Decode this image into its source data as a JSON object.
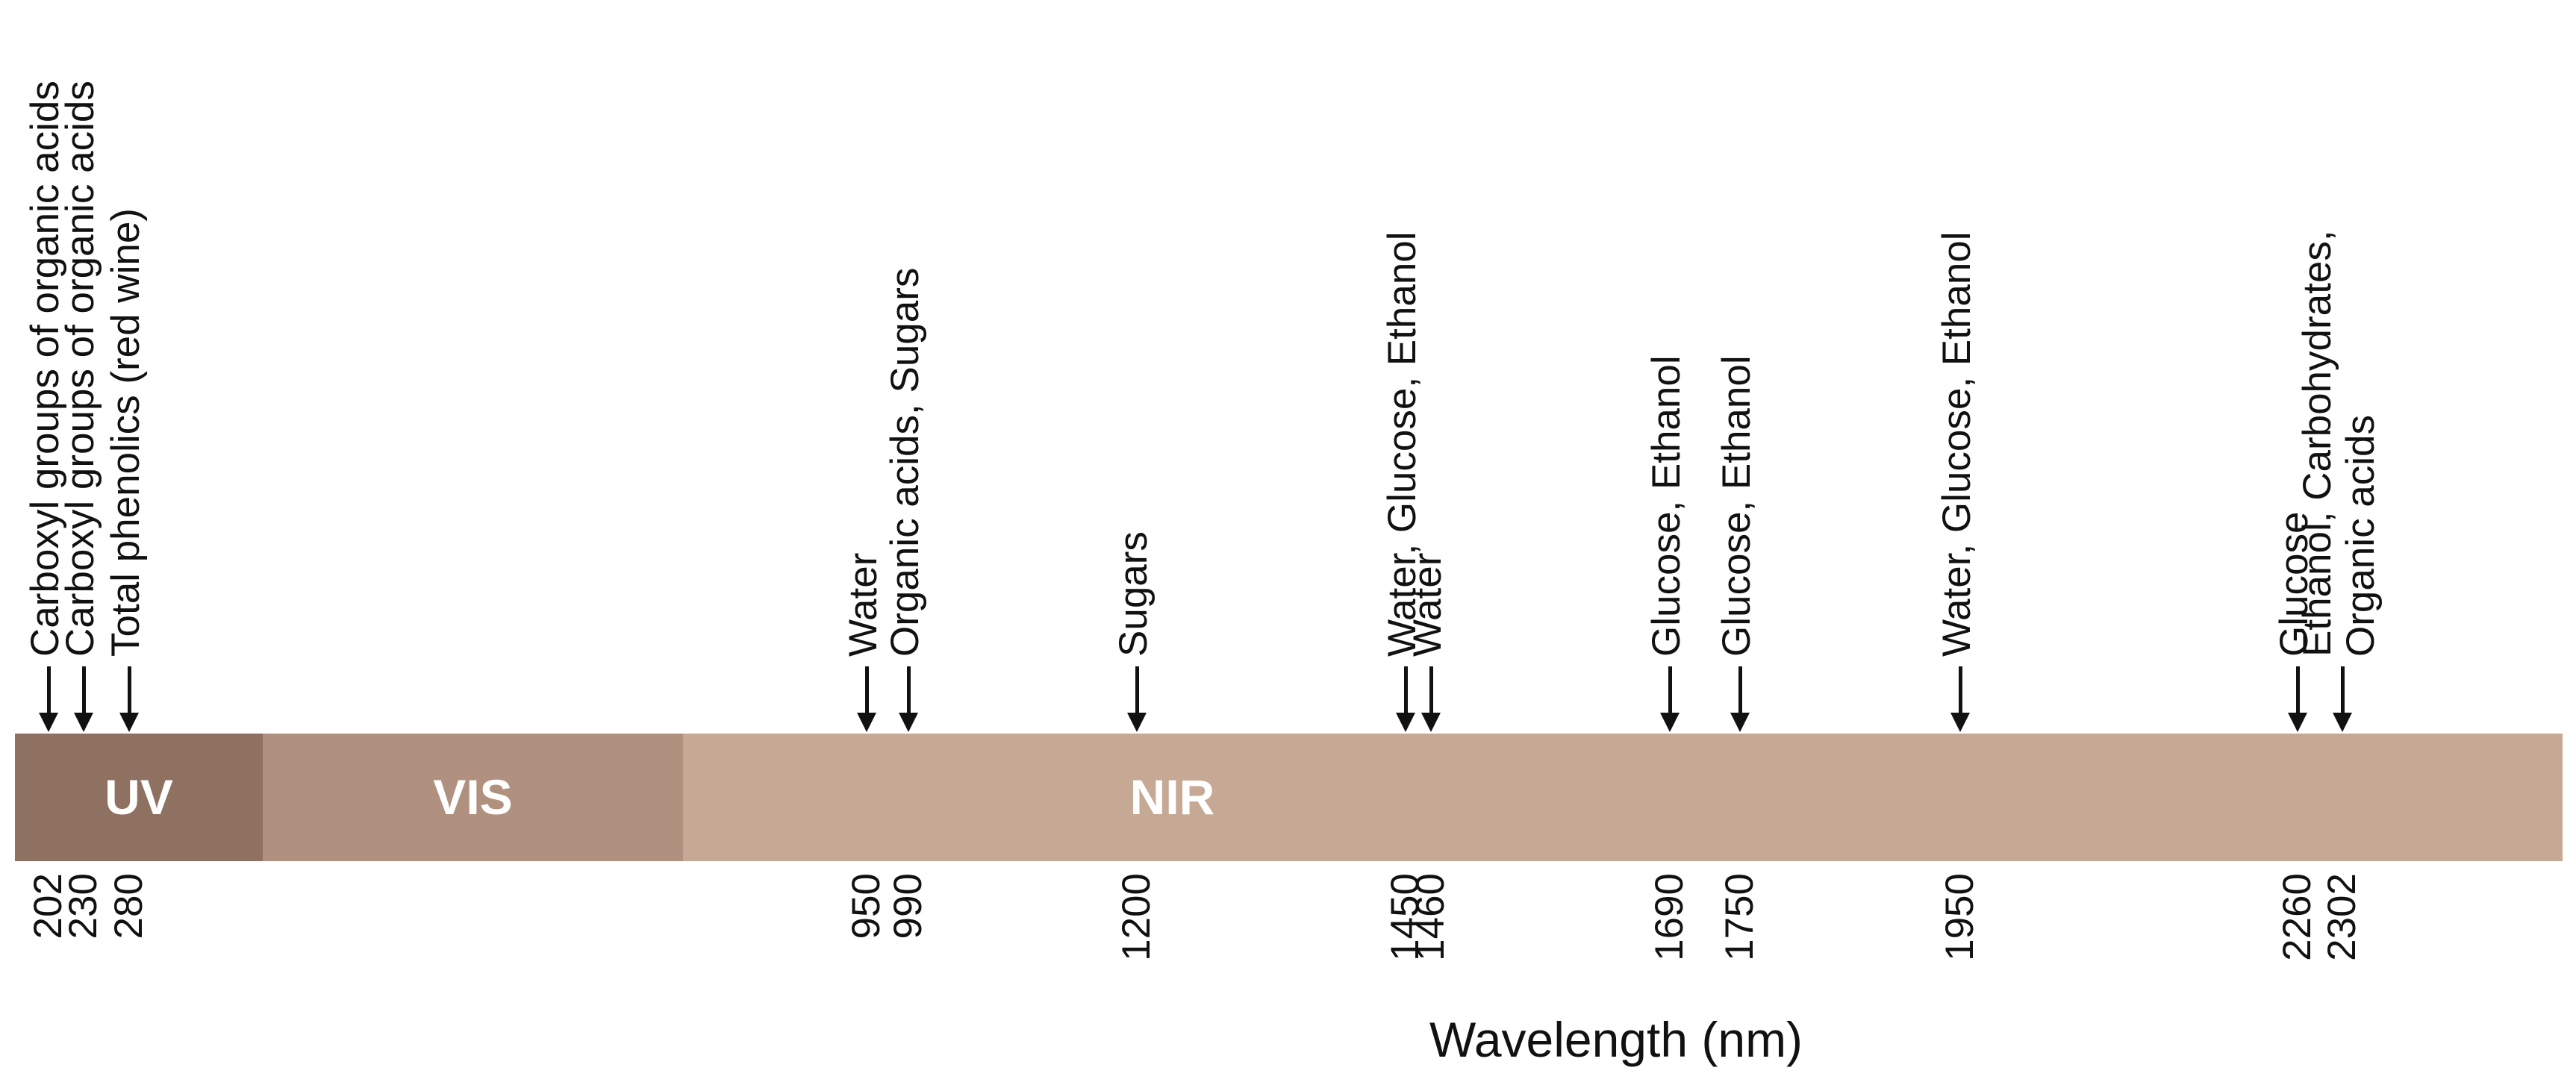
{
  "regions": [
    {
      "label": "UV",
      "color": "#8f7162"
    },
    {
      "label": "VIS",
      "color": "#b09180"
    },
    {
      "label": "NIR",
      "color": "#c6a994"
    }
  ],
  "axis_title": "Wavelength (nm)",
  "markers": [
    {
      "wavelength": "202",
      "label": "Carboxyl groups of organic acids"
    },
    {
      "wavelength": "230",
      "label": "Carboxyl groups of organic acids"
    },
    {
      "wavelength": "280",
      "label": "Total phenolics (red wine)"
    },
    {
      "wavelength": "950",
      "label": "Water"
    },
    {
      "wavelength": "990",
      "label": "Organic acids, Sugars"
    },
    {
      "wavelength": "1200",
      "label": "Sugars"
    },
    {
      "wavelength": "1450",
      "label": "Water, Glucose, Ethanol"
    },
    {
      "wavelength": "1460",
      "label": "Water"
    },
    {
      "wavelength": "1690",
      "label": "Glucose, Ethanol"
    },
    {
      "wavelength": "1750",
      "label": "Glucose, Ethanol"
    },
    {
      "wavelength": "1950",
      "label": "Water, Glucose, Ethanol"
    },
    {
      "wavelength": "2260",
      "label": "Glucose"
    },
    {
      "wavelength": "2302",
      "label": "Ethanol, Carbohydrates,\nOrganic acids"
    }
  ]
}
